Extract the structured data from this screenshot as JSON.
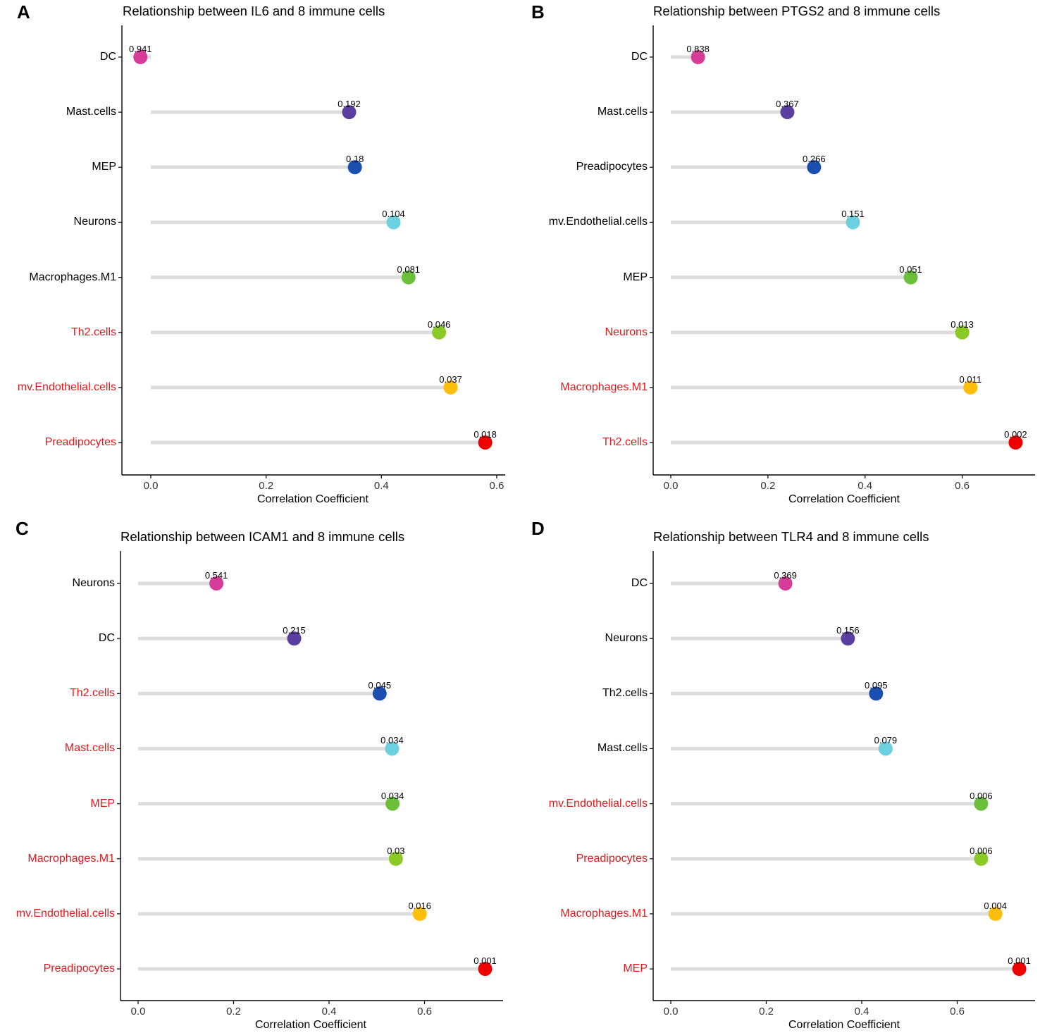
{
  "chart_data": [
    {
      "type": "lollipop",
      "panel": "A",
      "title": "Relationship between IL6 and 8 immune cells",
      "xlabel": "Correlation Coefficient",
      "xlim": [
        -0.05,
        0.61
      ],
      "xticks": [
        "0.0",
        "0.2",
        "0.4",
        "0.6"
      ],
      "xtick_values": [
        0.0,
        0.2,
        0.4,
        0.6
      ],
      "grid": false,
      "items": [
        {
          "label": "DC",
          "value": -0.018,
          "p": "0.941",
          "color": "#d63c97",
          "significant": false
        },
        {
          "label": "Mast.cells",
          "value": 0.344,
          "p": "0.192",
          "color": "#5a3ea0",
          "significant": false
        },
        {
          "label": "MEP",
          "value": 0.354,
          "p": "0.18",
          "color": "#1a4fb0",
          "significant": false
        },
        {
          "label": "Neurons",
          "value": 0.421,
          "p": "0.104",
          "color": "#6bd0df",
          "significant": false
        },
        {
          "label": "Macrophages.M1",
          "value": 0.447,
          "p": "0.081",
          "color": "#6cbf3a",
          "significant": false
        },
        {
          "label": "Th2.cells",
          "value": 0.5,
          "p": "0.046",
          "color": "#8ac926",
          "significant": true
        },
        {
          "label": "mv.Endothelial.cells",
          "value": 0.52,
          "p": "0.037",
          "color": "#ffbe0b",
          "significant": true
        },
        {
          "label": "Preadipocytes",
          "value": 0.58,
          "p": "0.018",
          "color": "#f00000",
          "significant": true
        }
      ]
    },
    {
      "type": "lollipop",
      "panel": "B",
      "title": "Relationship between PTGS2 and 8 immune cells",
      "xlabel": "Correlation Coefficient",
      "xlim": [
        -0.035,
        0.75
      ],
      "xticks": [
        "0.0",
        "0.2",
        "0.4",
        "0.6"
      ],
      "xtick_values": [
        0.0,
        0.2,
        0.4,
        0.6
      ],
      "grid": false,
      "items": [
        {
          "label": "DC",
          "value": 0.056,
          "p": "0.838",
          "color": "#d63c97",
          "significant": false
        },
        {
          "label": "Mast.cells",
          "value": 0.24,
          "p": "0.367",
          "color": "#5a3ea0",
          "significant": false
        },
        {
          "label": "Preadipocytes",
          "value": 0.295,
          "p": "0.266",
          "color": "#1a4fb0",
          "significant": false
        },
        {
          "label": "mv.Endothelial.cells",
          "value": 0.375,
          "p": "0.151",
          "color": "#6bd0df",
          "significant": false
        },
        {
          "label": "MEP",
          "value": 0.494,
          "p": "0.051",
          "color": "#6cbf3a",
          "significant": false
        },
        {
          "label": "Neurons",
          "value": 0.6,
          "p": "0.013",
          "color": "#8ac926",
          "significant": true
        },
        {
          "label": "Macrophages.M1",
          "value": 0.617,
          "p": "0.011",
          "color": "#ffbe0b",
          "significant": true
        },
        {
          "label": "Th2.cells",
          "value": 0.71,
          "p": "0.002",
          "color": "#f00000",
          "significant": true
        }
      ]
    },
    {
      "type": "lollipop",
      "panel": "C",
      "title": "Relationship between ICAM1 and 8 immune cells",
      "xlabel": "Correlation Coefficient",
      "xlim": [
        -0.04,
        0.765
      ],
      "xticks": [
        "0.0",
        "0.2",
        "0.4",
        "0.6"
      ],
      "xtick_values": [
        0.0,
        0.2,
        0.4,
        0.6
      ],
      "grid": false,
      "items": [
        {
          "label": "Neurons",
          "value": 0.164,
          "p": "0.541",
          "color": "#d63c97",
          "significant": false
        },
        {
          "label": "DC",
          "value": 0.327,
          "p": "0.215",
          "color": "#5a3ea0",
          "significant": false
        },
        {
          "label": "Th2.cells",
          "value": 0.506,
          "p": "0.045",
          "color": "#1a4fb0",
          "significant": true
        },
        {
          "label": "Mast.cells",
          "value": 0.532,
          "p": "0.034",
          "color": "#6bd0df",
          "significant": true
        },
        {
          "label": "MEP",
          "value": 0.533,
          "p": "0.034",
          "color": "#6cbf3a",
          "significant": true
        },
        {
          "label": "Macrophages.M1",
          "value": 0.54,
          "p": "0.03",
          "color": "#8ac926",
          "significant": true
        },
        {
          "label": "mv.Endothelial.cells",
          "value": 0.59,
          "p": "0.016",
          "color": "#ffbe0b",
          "significant": true
        },
        {
          "label": "Preadipocytes",
          "value": 0.727,
          "p": "0.001",
          "color": "#f00000",
          "significant": true
        }
      ]
    },
    {
      "type": "lollipop",
      "panel": "D",
      "title": "Relationship between TLR4 and 8 immune cells",
      "xlabel": "Correlation Coefficient",
      "xlim": [
        -0.035,
        0.76
      ],
      "xticks": [
        "0.0",
        "0.2",
        "0.4",
        "0.6"
      ],
      "xtick_values": [
        0.0,
        0.2,
        0.4,
        0.6
      ],
      "grid": false,
      "items": [
        {
          "label": "DC",
          "value": 0.24,
          "p": "0.369",
          "color": "#d63c97",
          "significant": false
        },
        {
          "label": "Neurons",
          "value": 0.371,
          "p": "0.156",
          "color": "#5a3ea0",
          "significant": false
        },
        {
          "label": "Th2.cells",
          "value": 0.43,
          "p": "0.095",
          "color": "#1a4fb0",
          "significant": false
        },
        {
          "label": "Mast.cells",
          "value": 0.45,
          "p": "0.079",
          "color": "#6bd0df",
          "significant": false
        },
        {
          "label": "mv.Endothelial.cells",
          "value": 0.65,
          "p": "0.006",
          "color": "#6cbf3a",
          "significant": true
        },
        {
          "label": "Preadipocytes",
          "value": 0.65,
          "p": "0.006",
          "color": "#8ac926",
          "significant": true
        },
        {
          "label": "Macrophages.M1",
          "value": 0.68,
          "p": "0.004",
          "color": "#ffbe0b",
          "significant": true
        },
        {
          "label": "MEP",
          "value": 0.73,
          "p": "0.001",
          "color": "#f00000",
          "significant": true
        }
      ]
    }
  ],
  "colors": {
    "stem": "#dddddd",
    "axis": "#000000",
    "label_normal": "#000000",
    "label_significant": "#e3191c"
  }
}
